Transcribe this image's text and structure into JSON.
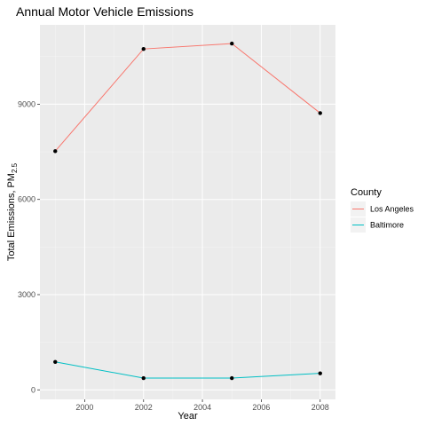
{
  "chart_data": {
    "type": "line",
    "title": "Annual Motor Vehicle Emissions",
    "xlabel": "Year",
    "ylabel_main": "Total Emissions, PM",
    "ylabel_sub": "2.5",
    "x": [
      1999,
      2002,
      2005,
      2008
    ],
    "xlim": [
      1998.48,
      2008.52
    ],
    "ylim": [
      -300,
      11500
    ],
    "xticks": [
      2000,
      2002,
      2004,
      2006,
      2008
    ],
    "yticks": [
      0,
      3000,
      6000,
      9000
    ],
    "grid": true,
    "legend": {
      "title": "County",
      "position": "right"
    },
    "series": [
      {
        "name": "Los Angeles",
        "color": "#F8766D",
        "values": [
          7520,
          10740,
          10910,
          8720
        ]
      },
      {
        "name": "Baltimore",
        "color": "#00BFC4",
        "values": [
          880,
          370,
          370,
          520
        ]
      }
    ],
    "point_color": "#000000",
    "panel_background": "#EBEBEB"
  }
}
